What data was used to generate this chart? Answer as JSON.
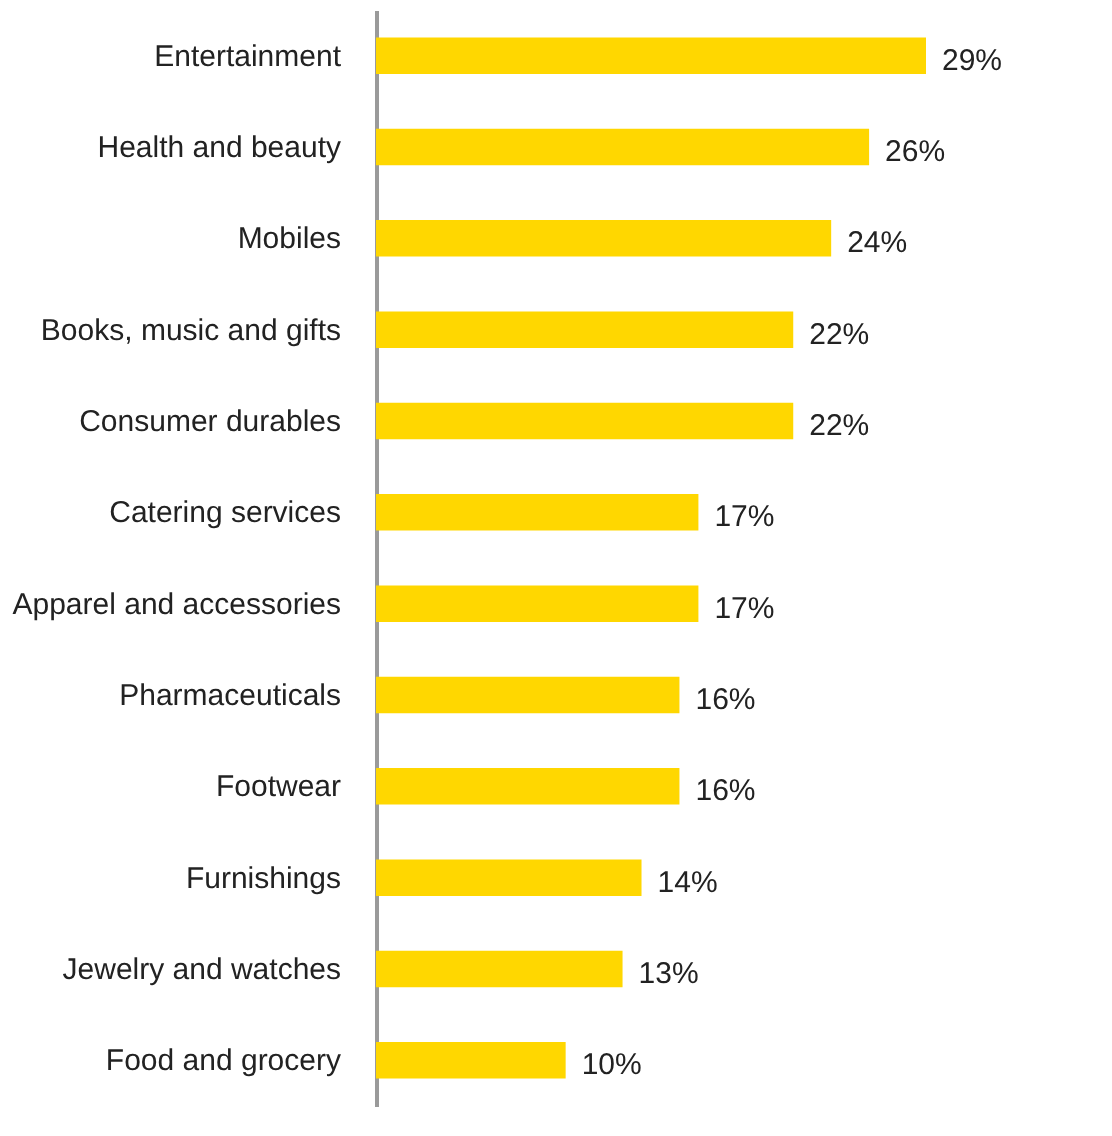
{
  "chart_data": {
    "type": "bar",
    "orientation": "horizontal",
    "categories": [
      "Entertainment",
      "Health and beauty",
      "Mobiles",
      "Books, music and gifts",
      "Consumer durables",
      "Catering services",
      "Apparel and accessories",
      "Pharmaceuticals",
      "Footwear",
      "Furnishings",
      "Jewelry and watches",
      "Food and grocery"
    ],
    "values": [
      29,
      26,
      24,
      22,
      22,
      17,
      17,
      16,
      16,
      14,
      13,
      10
    ],
    "value_labels": [
      "29%",
      "26%",
      "24%",
      "22%",
      "22%",
      "17%",
      "17%",
      "16%",
      "16%",
      "14%",
      "13%",
      "10%"
    ],
    "color": "#ffd700"
  }
}
